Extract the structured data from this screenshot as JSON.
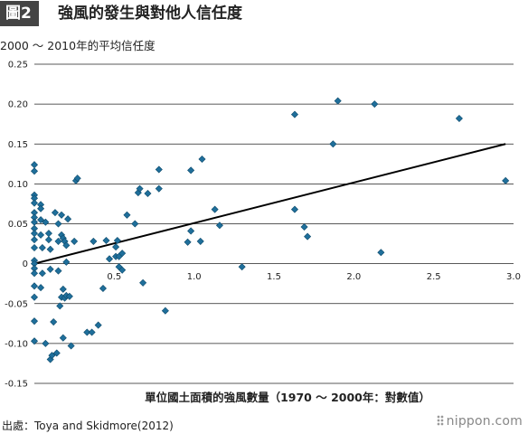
{
  "figure": {
    "badge": "圖2",
    "title": "強風的發生與對他人信任度",
    "subtitle": "2000 ～ 2010年的平均信任度"
  },
  "footer": {
    "source": "出處：Toya and Skidmore(2012)",
    "brand": "nippon.com"
  },
  "colors": {
    "marker": "#1f6f9b",
    "trend": "#000000",
    "grid": "#222222",
    "badge_bg": "#444444"
  },
  "chart_data": {
    "type": "scatter",
    "title": "",
    "xlabel": "單位國土面積的強風數量（1970 ～ 2000年：對數值）",
    "ylabel": "",
    "xlim": [
      0,
      3.0
    ],
    "ylim": [
      -0.15,
      0.25
    ],
    "x_ticks": [
      "0.5",
      "1.0",
      "1.5",
      "2.0",
      "2.5",
      "3.0"
    ],
    "x_tick_values": [
      0.5,
      1.0,
      1.5,
      2.0,
      2.5,
      3.0
    ],
    "y_ticks": [
      "0.25",
      "0.20",
      "0.15",
      "0.10",
      "0.05",
      "0",
      "-0.05",
      "-0.10",
      "-0.15"
    ],
    "y_tick_values": [
      0.25,
      0.2,
      0.15,
      0.1,
      0.05,
      0,
      -0.05,
      -0.1,
      -0.15
    ],
    "grid": "horizontal",
    "trendline": {
      "x": [
        0,
        2.95
      ],
      "y": [
        0.0,
        0.15
      ]
    },
    "points": [
      [
        0.0,
        0.124
      ],
      [
        0.0,
        0.116
      ],
      [
        0.0,
        0.086
      ],
      [
        0.0,
        0.082
      ],
      [
        0.0,
        0.076
      ],
      [
        0.0,
        0.064
      ],
      [
        0.0,
        0.058
      ],
      [
        0.0,
        0.052
      ],
      [
        0.0,
        0.044
      ],
      [
        0.0,
        0.038
      ],
      [
        0.0,
        0.03
      ],
      [
        0.0,
        0.02
      ],
      [
        0.0,
        0.004
      ],
      [
        0.0,
        0.0
      ],
      [
        0.0,
        -0.006
      ],
      [
        0.0,
        -0.012
      ],
      [
        0.0,
        -0.028
      ],
      [
        0.0,
        -0.042
      ],
      [
        0.0,
        -0.072
      ],
      [
        0.0,
        -0.097
      ],
      [
        0.04,
        0.074
      ],
      [
        0.04,
        0.069
      ],
      [
        0.04,
        0.055
      ],
      [
        0.04,
        0.036
      ],
      [
        0.05,
        0.02
      ],
      [
        0.05,
        -0.012
      ],
      [
        0.04,
        -0.03
      ],
      [
        0.07,
        0.052
      ],
      [
        0.09,
        0.038
      ],
      [
        0.09,
        0.03
      ],
      [
        0.1,
        0.018
      ],
      [
        0.1,
        -0.007
      ],
      [
        0.07,
        -0.1
      ],
      [
        0.12,
        -0.073
      ],
      [
        0.1,
        -0.12
      ],
      [
        0.11,
        -0.115
      ],
      [
        0.13,
        0.064
      ],
      [
        0.14,
        -0.112
      ],
      [
        0.15,
        0.05
      ],
      [
        0.15,
        -0.009
      ],
      [
        0.15,
        0.028
      ],
      [
        0.16,
        -0.053
      ],
      [
        0.17,
        0.061
      ],
      [
        0.17,
        0.036
      ],
      [
        0.17,
        -0.042
      ],
      [
        0.18,
        0.032
      ],
      [
        0.18,
        -0.032
      ],
      [
        0.19,
        0.028
      ],
      [
        0.19,
        -0.043
      ],
      [
        0.2,
        0.023
      ],
      [
        0.2,
        0.002
      ],
      [
        0.2,
        -0.04
      ],
      [
        0.21,
        0.056
      ],
      [
        0.22,
        -0.041
      ],
      [
        0.23,
        -0.103
      ],
      [
        0.25,
        0.028
      ],
      [
        0.26,
        0.104
      ],
      [
        0.27,
        0.107
      ],
      [
        0.18,
        -0.093
      ],
      [
        0.33,
        -0.086
      ],
      [
        0.36,
        -0.086
      ],
      [
        0.37,
        0.028
      ],
      [
        0.4,
        -0.077
      ],
      [
        0.45,
        0.029
      ],
      [
        0.43,
        -0.031
      ],
      [
        0.47,
        0.006
      ],
      [
        0.51,
        0.021
      ],
      [
        0.52,
        0.029
      ],
      [
        0.51,
        0.009
      ],
      [
        0.53,
        0.009
      ],
      [
        0.53,
        -0.004
      ],
      [
        0.55,
        0.013
      ],
      [
        0.55,
        -0.008
      ],
      [
        0.58,
        0.061
      ],
      [
        0.63,
        0.05
      ],
      [
        0.65,
        0.089
      ],
      [
        0.66,
        0.094
      ],
      [
        0.68,
        -0.024
      ],
      [
        0.71,
        0.088
      ],
      [
        0.78,
        0.094
      ],
      [
        0.78,
        0.118
      ],
      [
        0.82,
        -0.059
      ],
      [
        0.96,
        0.027
      ],
      [
        0.98,
        0.117
      ],
      [
        0.98,
        0.041
      ],
      [
        1.04,
        0.028
      ],
      [
        1.05,
        0.131
      ],
      [
        1.13,
        0.068
      ],
      [
        1.16,
        0.048
      ],
      [
        1.3,
        -0.004
      ],
      [
        1.63,
        0.187
      ],
      [
        1.63,
        0.068
      ],
      [
        1.69,
        0.046
      ],
      [
        1.71,
        0.034
      ],
      [
        1.87,
        0.15
      ],
      [
        1.9,
        0.204
      ],
      [
        2.13,
        0.2
      ],
      [
        2.17,
        0.014
      ],
      [
        2.66,
        0.182
      ],
      [
        2.95,
        0.104
      ]
    ]
  }
}
